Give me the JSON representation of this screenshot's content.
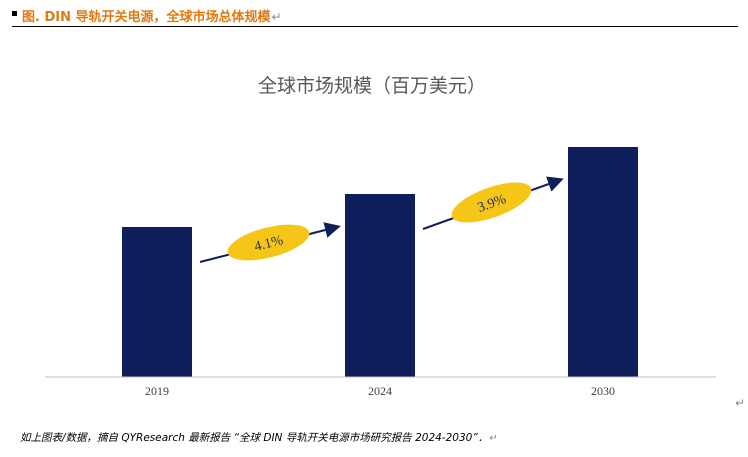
{
  "header": {
    "bullet": "▪",
    "caption": "图.  DIN 导轨开关电源，全球市场总体规模",
    "return_mark": "↵"
  },
  "colors": {
    "caption": "#e07a10",
    "bar": "#0f1f5c",
    "growth_badge": "#f5c518",
    "growth_text": "#1f2d5a",
    "arrow": "#0f1f5c"
  },
  "chart_data": {
    "type": "bar",
    "title": "全球市场规模（百万美元）",
    "categories": [
      "2019",
      "2024",
      "2030"
    ],
    "values": [
      150,
      183,
      230
    ],
    "ylim": [
      0,
      250
    ],
    "xlabel": "",
    "ylabel": "",
    "grid": false,
    "legend": "none",
    "growth_annotations": [
      {
        "label": "4.1%",
        "from": "2019",
        "to": "2024"
      },
      {
        "label": "3.9%",
        "from": "2024",
        "to": "2030"
      }
    ]
  },
  "footer": {
    "source": "如上图表/数据，摘自 QYResearch 最新报告 “全球 DIN 导轨开关电源市场研究报告 2024-2030”．",
    "return_mark": "↵"
  },
  "stray_return_mark": "↵"
}
